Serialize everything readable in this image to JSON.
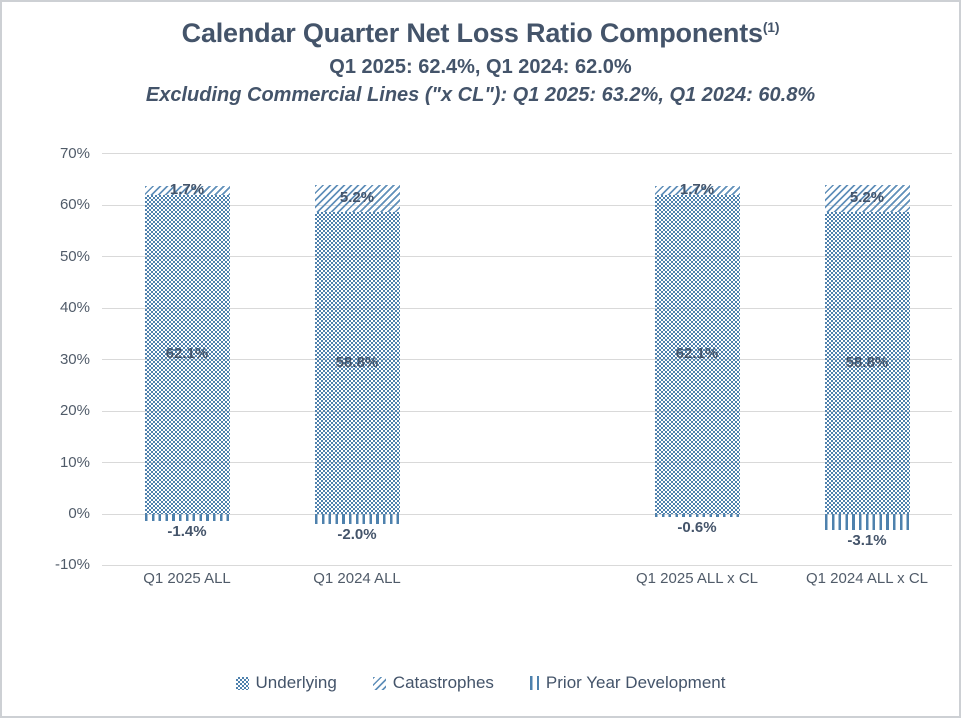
{
  "chart_data": {
    "type": "bar",
    "stacked": true,
    "title": "Calendar Quarter Net Loss Ratio Components",
    "title_superscript": "(1)",
    "subtitle": "Q1 2025: 62.4%, Q1 2024: 62.0%",
    "subtitle2": "Excluding Commercial Lines (\"x CL\"): Q1 2025: 63.2%, Q1 2024: 60.8%",
    "categories": [
      "Q1 2025 ALL",
      "Q1 2024 ALL",
      "",
      "Q1 2025 ALL x CL",
      "Q1 2024 ALL x CL"
    ],
    "series": [
      {
        "name": "Underlying",
        "pattern": "checker",
        "values": [
          62.1,
          58.8,
          null,
          62.1,
          58.8
        ]
      },
      {
        "name": "Catastrophes",
        "pattern": "diagonal-hatch",
        "values": [
          1.7,
          5.2,
          null,
          1.7,
          5.2
        ]
      },
      {
        "name": "Prior Year Development",
        "pattern": "vertical-lines",
        "values": [
          -1.4,
          -2.0,
          null,
          -0.6,
          -3.1
        ]
      }
    ],
    "data_label_format": "0.0%",
    "y_axis": {
      "min": -10,
      "max": 70,
      "step": 10,
      "tick_labels": [
        "70%",
        "60%",
        "50%",
        "40%",
        "30%",
        "20%",
        "10%",
        "0%",
        "-10%"
      ]
    },
    "grid": true,
    "legend_position": "bottom",
    "colors": {
      "pattern_blue": "#4e81ad",
      "hatch_blue": "#6190ba",
      "label_text": "#44546a",
      "axis_text": "#505b69",
      "gridline": "#d9d9d9"
    }
  }
}
